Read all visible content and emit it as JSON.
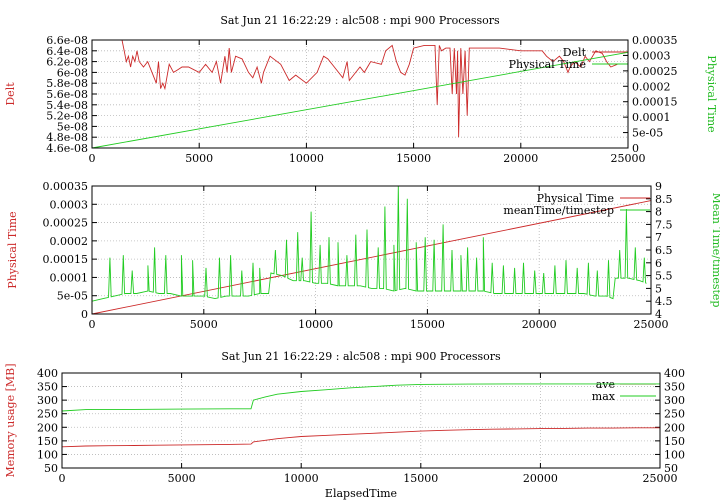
{
  "colors": {
    "red": "#cc2a2a",
    "green": "#22cc22",
    "grid": "#b8b8b8"
  },
  "chart_data": [
    {
      "type": "line",
      "title": "Sat Jun 21 16:22:29 : alc508 : mpi 900 Processors",
      "ylabel": "Delt",
      "y2label": "Physical Time",
      "xlim": [
        0,
        25000
      ],
      "ylim": [
        4.6e-08,
        6.6e-08
      ],
      "y2lim": [
        0,
        0.00035
      ],
      "xticks": [
        "0",
        "5000",
        "10000",
        "15000",
        "20000",
        "25000"
      ],
      "yticks": [
        "4.6e-08",
        "4.8e-08",
        "5e-08",
        "5.2e-08",
        "5.4e-08",
        "5.6e-08",
        "5.8e-08",
        "6e-08",
        "6.2e-08",
        "6.4e-08",
        "6.6e-08"
      ],
      "y2ticks": [
        "0",
        "5e-05",
        "0.0001",
        "0.00015",
        "0.0002",
        "0.00025",
        "0.0003",
        "0.00035"
      ],
      "grid": true,
      "legend_position": "top-right",
      "series": [
        {
          "name": "Delt",
          "axis": "left",
          "color": "#cc2a2a",
          "x": [
            0,
            1400,
            1500,
            1600,
            1700,
            1800,
            1900,
            2000,
            2100,
            2200,
            2400,
            2600,
            2800,
            3000,
            3100,
            3200,
            3300,
            3400,
            3600,
            3800,
            4000,
            4200,
            4500,
            5000,
            5300,
            5600,
            5800,
            6000,
            6200,
            6300,
            6400,
            6500,
            6700,
            7000,
            7300,
            7500,
            7700,
            7900,
            8000,
            8300,
            8800,
            9000,
            9200,
            9500,
            10000,
            10500,
            10800,
            11000,
            11300,
            11700,
            11900,
            12000,
            12300,
            12500,
            12700,
            13000,
            13500,
            13700,
            14000,
            14200,
            14400,
            14600,
            14800,
            15000,
            15500,
            16000,
            16100,
            16200,
            16300,
            16500,
            16700,
            16800,
            16900,
            17000,
            17050,
            17100,
            17200,
            17300,
            17400,
            17500,
            17600,
            18000,
            19000,
            20000,
            21000,
            21200,
            21500,
            21800,
            22000,
            22200,
            22300,
            22500,
            22800,
            23000,
            23200,
            23500,
            23800,
            24000,
            24200,
            24500
          ],
          "values": [
            6.6e-08,
            6.6e-08,
            6.4e-08,
            6.2e-08,
            6.3e-08,
            6.1e-08,
            6.3e-08,
            6.2e-08,
            6.4e-08,
            6.2e-08,
            6.1e-08,
            6.2e-08,
            6e-08,
            5.8e-08,
            6.2e-08,
            5.7e-08,
            5.8e-08,
            5.7e-08,
            6.15e-08,
            6e-08,
            6.05e-08,
            6.1e-08,
            6.1e-08,
            6e-08,
            6.15e-08,
            6e-08,
            6.2e-08,
            5.8e-08,
            6.3e-08,
            6e-08,
            6.45e-08,
            6e-08,
            6.3e-08,
            6.25e-08,
            6e-08,
            5.9e-08,
            6.1e-08,
            5.8e-08,
            6e-08,
            6.3e-08,
            6.15e-08,
            6e-08,
            5.85e-08,
            5.95e-08,
            5.8e-08,
            6e-08,
            6.3e-08,
            6.25e-08,
            6.1e-08,
            5.9e-08,
            6.2e-08,
            5.85e-08,
            6e-08,
            6.1e-08,
            6e-08,
            6.2e-08,
            6.15e-08,
            6.4e-08,
            6.5e-08,
            6.2e-08,
            6e-08,
            5.95e-08,
            6.15e-08,
            6.45e-08,
            6.5e-08,
            6.5e-08,
            5.4e-08,
            6.5e-08,
            6.4e-08,
            6.45e-08,
            6.45e-08,
            5.6e-08,
            6.45e-08,
            5.6e-08,
            6.4e-08,
            4.8e-08,
            6.45e-08,
            5.6e-08,
            6.4e-08,
            5.2e-08,
            6.45e-08,
            6.45e-08,
            6.45e-08,
            6.4e-08,
            6.4e-08,
            6.3e-08,
            6.2e-08,
            6.3e-08,
            6.2e-08,
            6e-08,
            6.1e-08,
            6.2e-08,
            6.1e-08,
            6.3e-08,
            6.2e-08,
            6.4e-08,
            6.35e-08,
            6.2e-08,
            6.1e-08,
            6.15e-08
          ]
        },
        {
          "name": "Physical Time",
          "axis": "right",
          "color": "#22cc22",
          "x": [
            0,
            25000
          ],
          "values": [
            0,
            0.00031
          ]
        }
      ]
    },
    {
      "type": "line",
      "ylabel": "Physical Time",
      "y2label": "Mean Time/timestep",
      "xlim": [
        0,
        25000
      ],
      "ylim": [
        0,
        0.00035
      ],
      "y2lim": [
        4,
        9
      ],
      "xticks": [
        "0",
        "5000",
        "10000",
        "15000",
        "20000",
        "25000"
      ],
      "yticks": [
        "0",
        "5e-05",
        "0.0001",
        "0.00015",
        "0.0002",
        "0.00025",
        "0.0003",
        "0.00035"
      ],
      "y2ticks": [
        "4",
        "4.5",
        "5",
        "5.5",
        "6",
        "6.5",
        "7",
        "7.5",
        "8",
        "8.5",
        "9"
      ],
      "grid": true,
      "legend_position": "top-right",
      "series": [
        {
          "name": "Physical Time",
          "axis": "left",
          "color": "#cc2a2a",
          "x": [
            0,
            25000
          ],
          "values": [
            0,
            0.00031
          ]
        },
        {
          "name": "meanTime/timestep",
          "axis": "right",
          "color": "#22cc22",
          "x": [
            0,
            500,
            1000,
            1500,
            2000,
            2500,
            3000,
            3500,
            4000,
            4500,
            5000,
            5500,
            6000,
            6500,
            7000,
            7500,
            7900,
            8000,
            8500,
            9000,
            9500,
            10000,
            10500,
            11000,
            11500,
            12000,
            12500,
            13000,
            13500,
            14000,
            14500,
            15000,
            15500,
            16000,
            16500,
            17000,
            17500,
            18000,
            18500,
            19000,
            19500,
            20000,
            20500,
            21000,
            21500,
            22000,
            22500,
            23000,
            23300,
            23400,
            23500,
            24000,
            24500,
            24800
          ],
          "values": [
            4.5,
            4.6,
            4.7,
            4.8,
            4.8,
            4.9,
            4.8,
            4.8,
            4.7,
            4.7,
            4.7,
            4.6,
            4.7,
            4.7,
            4.7,
            4.8,
            4.8,
            5.6,
            5.5,
            5.3,
            5.3,
            5.2,
            5.2,
            5.1,
            5.1,
            5.1,
            5.0,
            5.0,
            4.9,
            5.0,
            4.9,
            4.9,
            4.9,
            4.9,
            4.9,
            4.9,
            4.9,
            4.8,
            4.8,
            4.8,
            4.8,
            4.8,
            4.8,
            4.8,
            4.8,
            4.8,
            4.7,
            4.7,
            4.6,
            5.4,
            5.4,
            5.4,
            5.3,
            5.2
          ],
          "spikes": [
            [
              800,
              6.2
            ],
            [
              1400,
              6.3
            ],
            [
              1800,
              5.7
            ],
            [
              2500,
              5.9
            ],
            [
              2800,
              6.6
            ],
            [
              3300,
              6.3
            ],
            [
              4000,
              6.3
            ],
            [
              4500,
              6.1
            ],
            [
              5100,
              5.8
            ],
            [
              5700,
              6.2
            ],
            [
              6200,
              6.3
            ],
            [
              6700,
              5.7
            ],
            [
              7200,
              6.0
            ],
            [
              7500,
              5.8
            ],
            [
              8200,
              6.5
            ],
            [
              8700,
              6.9
            ],
            [
              9200,
              7.2
            ],
            [
              9400,
              6.2
            ],
            [
              9800,
              8.0
            ],
            [
              10200,
              6.7
            ],
            [
              10600,
              7.0
            ],
            [
              11000,
              6.8
            ],
            [
              11400,
              6.3
            ],
            [
              11800,
              7.1
            ],
            [
              12300,
              7.3
            ],
            [
              12800,
              6.6
            ],
            [
              13100,
              8.2
            ],
            [
              13500,
              6.7
            ],
            [
              13700,
              9.0
            ],
            [
              14100,
              8.5
            ],
            [
              14500,
              6.8
            ],
            [
              14900,
              7.0
            ],
            [
              15300,
              6.9
            ],
            [
              15700,
              7.5
            ],
            [
              16100,
              6.5
            ],
            [
              16500,
              6.3
            ],
            [
              16800,
              6.6
            ],
            [
              17200,
              6.2
            ],
            [
              17500,
              7.0
            ],
            [
              17900,
              6.0
            ],
            [
              18400,
              5.9
            ],
            [
              18900,
              5.8
            ],
            [
              19300,
              6.0
            ],
            [
              19800,
              5.7
            ],
            [
              20200,
              5.6
            ],
            [
              20700,
              5.9
            ],
            [
              21200,
              6.1
            ],
            [
              21700,
              5.8
            ],
            [
              22200,
              6.0
            ],
            [
              22600,
              5.7
            ],
            [
              23100,
              6.1
            ],
            [
              23600,
              6.5
            ],
            [
              23900,
              8.1
            ],
            [
              24300,
              6.6
            ],
            [
              24700,
              6.2
            ]
          ]
        }
      ]
    },
    {
      "type": "line",
      "title": "Sat Jun 21 16:22:29 : alc508 : mpi 900 Processors",
      "xlabel": "ElapsedTime",
      "ylabel": "Memory usage [MB]",
      "xlim": [
        0,
        25000
      ],
      "ylim": [
        50,
        400
      ],
      "y2lim": [
        50,
        400
      ],
      "xticks": [
        "0",
        "5000",
        "10000",
        "15000",
        "20000",
        "25000"
      ],
      "yticks": [
        "50",
        "100",
        "150",
        "200",
        "250",
        "300",
        "350",
        "400"
      ],
      "y2ticks": [
        "50",
        "100",
        "150",
        "200",
        "250",
        "300",
        "350",
        "400"
      ],
      "grid": true,
      "legend_position": "top-right",
      "series": [
        {
          "name": "ave",
          "color": "#cc2a2a",
          "x": [
            0,
            1000,
            2000,
            3000,
            4000,
            5000,
            6000,
            7000,
            7900,
            8000,
            8500,
            9000,
            9500,
            10000,
            11000,
            12000,
            13000,
            14000,
            15000,
            16000,
            17000,
            18000,
            19000,
            20000,
            21000,
            22000,
            23000,
            24000,
            25000
          ],
          "values": [
            128,
            131,
            132,
            133,
            134,
            135,
            136,
            137,
            138,
            146,
            152,
            158,
            162,
            166,
            170,
            174,
            178,
            182,
            186,
            189,
            191,
            193,
            194,
            195,
            196,
            197,
            197,
            198,
            198
          ]
        },
        {
          "name": "max",
          "color": "#22cc22",
          "x": [
            0,
            1000,
            3000,
            5000,
            7000,
            7900,
            8000,
            8500,
            9000,
            10000,
            11000,
            12000,
            13000,
            14000,
            15000,
            17000,
            19000,
            21000,
            23000,
            25000
          ],
          "values": [
            260,
            265,
            266,
            267,
            268,
            268,
            300,
            312,
            322,
            332,
            338,
            345,
            350,
            355,
            358,
            359,
            360,
            360,
            360,
            360
          ]
        }
      ]
    }
  ]
}
